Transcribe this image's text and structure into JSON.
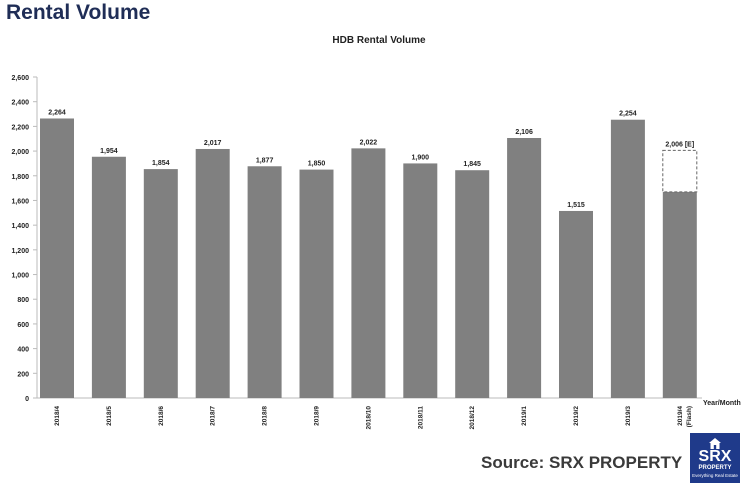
{
  "page": {
    "heading": "Rental Volume"
  },
  "source": {
    "text": "Source:  SRX PROPERTY"
  },
  "logo": {
    "name": "SRX",
    "sub": "PROPERTY",
    "tagline": "Everything Real Estate",
    "icon": "house-icon",
    "color": "#1f3a8a"
  },
  "chart_data": {
    "type": "bar",
    "title": "HDB Rental Volume",
    "xlabel": "Year/Month",
    "ylabel": "",
    "ylim": [
      0,
      2600
    ],
    "yticks": [
      0,
      200,
      400,
      600,
      800,
      1000,
      1200,
      1400,
      1600,
      1800,
      2000,
      2200,
      2400,
      2600
    ],
    "ytick_labels": [
      "0",
      "200",
      "400",
      "600",
      "800",
      "1,000",
      "1,200",
      "1,400",
      "1,600",
      "1,800",
      "2,000",
      "2,200",
      "2,400",
      "2,600"
    ],
    "grid": false,
    "categories": [
      "2018/4",
      "2018/5",
      "2018/6",
      "2018/7",
      "2018/8",
      "2018/9",
      "2018/10",
      "2018/11",
      "2018/12",
      "2019/1",
      "2019/2",
      "2019/3",
      "2019/4"
    ],
    "category_notes": [
      "",
      "",
      "",
      "",
      "",
      "",
      "",
      "",
      "",
      "",
      "",
      "",
      "(Flash)"
    ],
    "values": [
      2264,
      1954,
      1854,
      2017,
      1877,
      1850,
      2022,
      1900,
      1845,
      2106,
      1515,
      2254,
      1670
    ],
    "value_labels": [
      "2,264",
      "1,954",
      "1,854",
      "2,017",
      "1,877",
      "1,850",
      "2,022",
      "1,900",
      "1,845",
      "2,106",
      "1,515",
      "2,254",
      ""
    ],
    "estimate": {
      "category": "2019/4",
      "value": 2006,
      "label": "2,006 [E]"
    },
    "bar_color": "#808080"
  }
}
